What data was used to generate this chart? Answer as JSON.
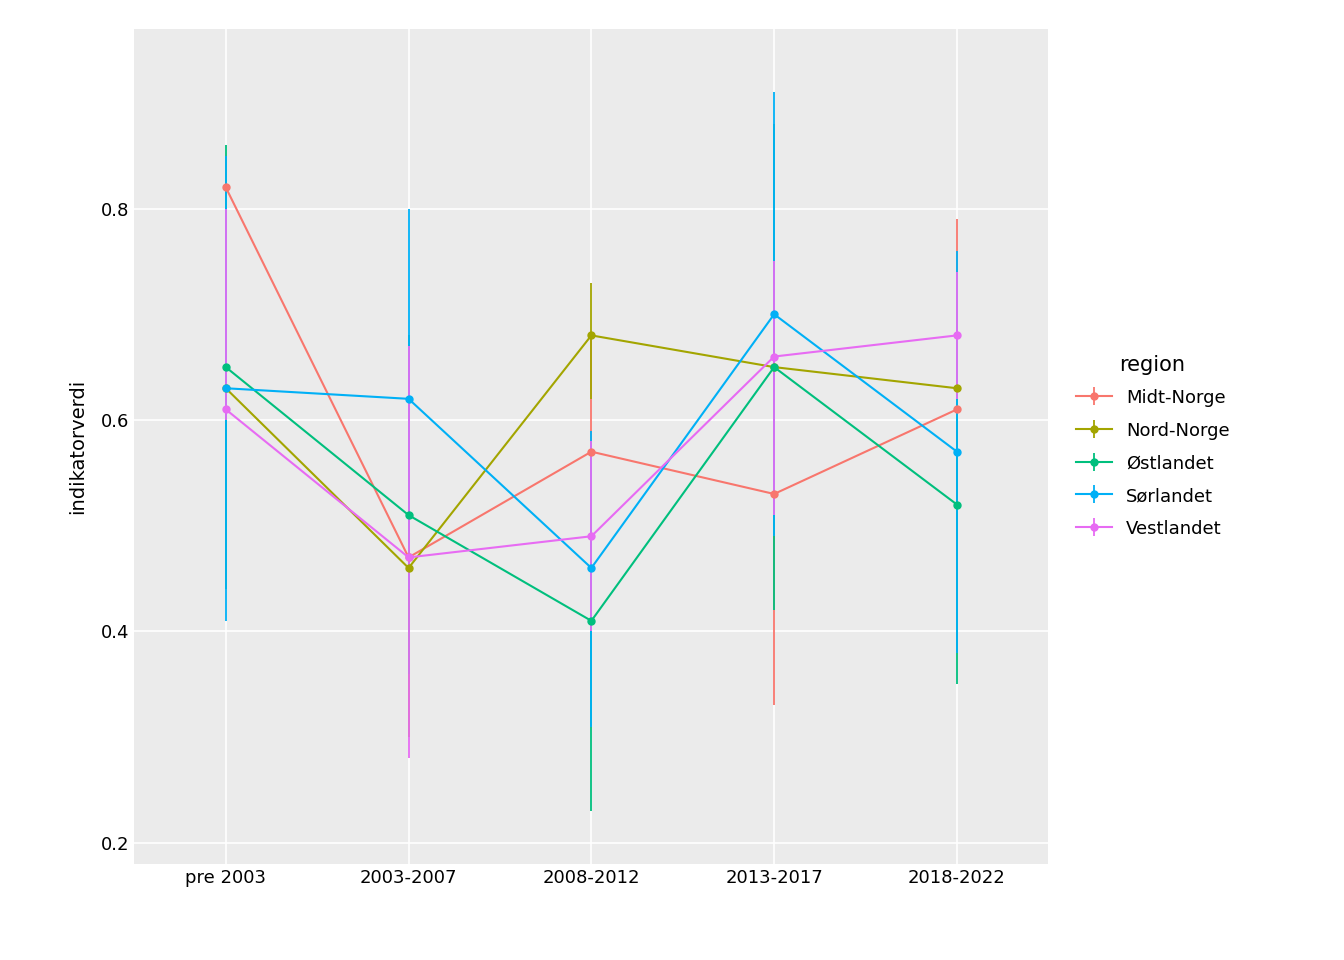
{
  "x_labels": [
    "pre 2003",
    "2003-2007",
    "2008-2012",
    "2013-2017",
    "2018-2022"
  ],
  "x_positions": [
    0,
    1,
    2,
    3,
    4
  ],
  "regions": {
    "Midt-Norge": {
      "color": "#F8766D",
      "values": [
        0.82,
        0.47,
        0.57,
        0.53,
        0.61
      ],
      "err_low": [
        0.46,
        0.3,
        0.43,
        0.33,
        0.44
      ],
      "err_high": [
        0.82,
        0.56,
        0.68,
        0.75,
        0.79
      ]
    },
    "Nord-Norge": {
      "color": "#A3A500",
      "values": [
        0.63,
        0.46,
        0.68,
        0.65,
        0.63
      ],
      "err_low": [
        0.44,
        0.3,
        0.62,
        0.6,
        0.51
      ],
      "err_high": [
        0.82,
        0.56,
        0.73,
        0.73,
        0.72
      ]
    },
    "Østlandet": {
      "color": "#00BF7D",
      "values": [
        0.65,
        0.51,
        0.41,
        0.65,
        0.52
      ],
      "err_low": [
        0.44,
        0.36,
        0.23,
        0.42,
        0.35
      ],
      "err_high": [
        0.86,
        0.68,
        0.57,
        0.88,
        0.62
      ]
    },
    "Sørlandet": {
      "color": "#00B0F6",
      "values": [
        0.63,
        0.62,
        0.46,
        0.7,
        0.57
      ],
      "err_low": [
        0.41,
        0.44,
        0.31,
        0.49,
        0.38
      ],
      "err_high": [
        0.85,
        0.8,
        0.59,
        0.91,
        0.76
      ]
    },
    "Vestlandet": {
      "color": "#E76BF3",
      "values": [
        0.61,
        0.47,
        0.49,
        0.66,
        0.68
      ],
      "err_low": [
        0.6,
        0.28,
        0.4,
        0.51,
        0.62
      ],
      "err_high": [
        0.8,
        0.67,
        0.58,
        0.75,
        0.74
      ]
    }
  },
  "ylabel": "indikatorverdi",
  "ylim": [
    0.18,
    0.97
  ],
  "yticks": [
    0.2,
    0.4,
    0.6,
    0.8
  ],
  "background_color": "#ffffff",
  "plot_bg_color": "#ebebeb",
  "grid_color": "#ffffff",
  "legend_title": "region",
  "figsize": [
    13.44,
    9.6
  ],
  "dpi": 100
}
